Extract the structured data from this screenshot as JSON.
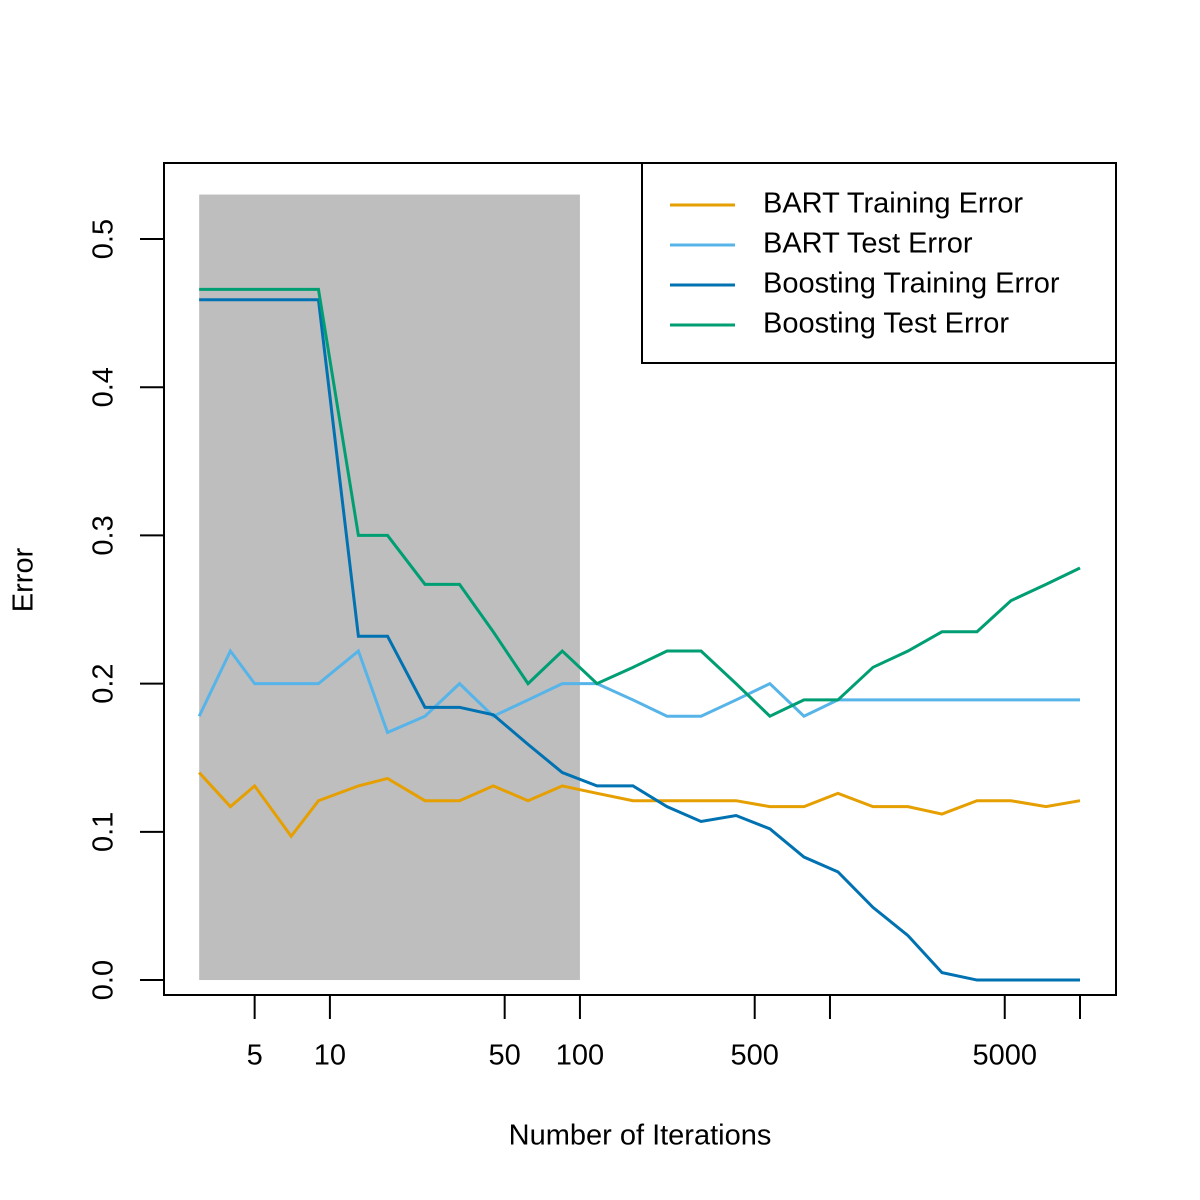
{
  "chart_data": {
    "type": "line",
    "x_label": "Number of Iterations",
    "y_label": "Error",
    "x": [
      3,
      4,
      5,
      7,
      9,
      13,
      17,
      24,
      33,
      45,
      62,
      85,
      117,
      163,
      223,
      305,
      421,
      575,
      787,
      1076,
      1486,
      2051,
      2805,
      3873,
      5297,
      7311,
      10000
    ],
    "series": [
      {
        "name": "BART Training Error",
        "color": "#E69F00",
        "values": [
          0.14,
          0.117,
          0.131,
          0.097,
          0.121,
          0.131,
          0.136,
          0.121,
          0.121,
          0.131,
          0.121,
          0.131,
          0.126,
          0.121,
          0.121,
          0.121,
          0.121,
          0.117,
          0.117,
          0.126,
          0.117,
          0.117,
          0.112,
          0.121,
          0.121,
          0.117,
          0.121
        ]
      },
      {
        "name": "BART Test Error",
        "color": "#56B4E9",
        "values": [
          0.178,
          0.222,
          0.2,
          0.2,
          0.2,
          0.222,
          0.167,
          0.178,
          0.2,
          0.178,
          0.189,
          0.2,
          0.2,
          0.189,
          0.178,
          0.178,
          0.189,
          0.2,
          0.178,
          0.189,
          0.189,
          0.189,
          0.189,
          0.189,
          0.189,
          0.189,
          0.189
        ]
      },
      {
        "name": "Boosting Training Error",
        "color": "#0072B2",
        "values": [
          0.459,
          0.459,
          0.459,
          0.459,
          0.459,
          0.232,
          0.232,
          0.184,
          0.184,
          0.179,
          0.159,
          0.14,
          0.131,
          0.131,
          0.117,
          0.107,
          0.111,
          0.102,
          0.083,
          0.073,
          0.049,
          0.03,
          0.005,
          0,
          0,
          0,
          0
        ]
      },
      {
        "name": "Boosting Test Error",
        "color": "#009E73",
        "values": [
          0.466,
          0.466,
          0.466,
          0.466,
          0.466,
          0.3,
          0.3,
          0.267,
          0.267,
          0.235,
          0.2,
          0.222,
          0.2,
          0.211,
          0.222,
          0.222,
          0.2,
          0.178,
          0.189,
          0.189,
          0.211,
          0.222,
          0.235,
          0.235,
          0.256,
          0.267,
          0.278
        ]
      }
    ],
    "highlight": {
      "x": [
        3,
        100
      ],
      "y": [
        0,
        0.53
      ],
      "color": "#BEBEBE"
    },
    "xlog": true,
    "xlim": [
      2.17,
      13930
    ],
    "xticks": [
      5,
      10,
      50,
      100,
      500,
      {
        "value": 1000,
        "label": null
      },
      5000,
      {
        "value": 10000,
        "label": null
      }
    ],
    "ylim": [
      -0.0101,
      0.5513
    ],
    "yticks": [
      {
        "value": 0,
        "label": "0.0"
      },
      0.1,
      0.2,
      0.3,
      0.4,
      0.5
    ],
    "legend": "topright"
  }
}
